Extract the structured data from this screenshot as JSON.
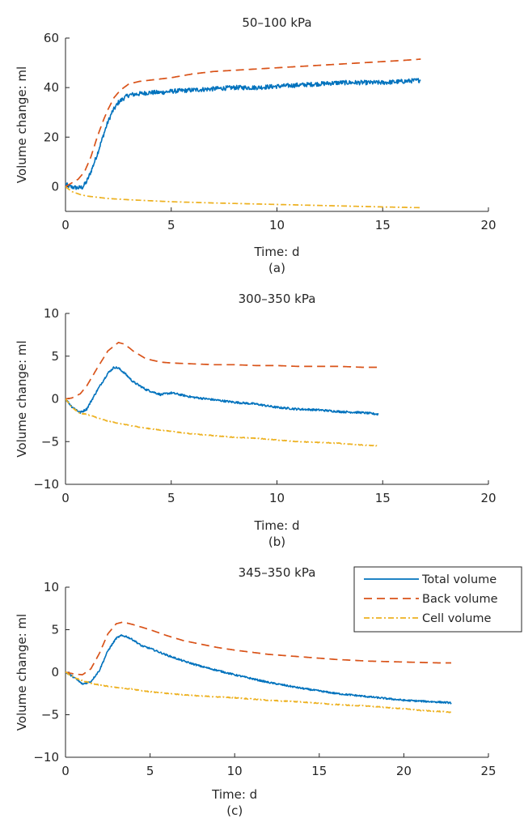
{
  "chart_data": [
    {
      "type": "line",
      "title": "50–100 kPa",
      "xlabel": "Time: d",
      "ylabel": "Volume change: ml",
      "caption": "(a)",
      "xlim": [
        0,
        20
      ],
      "ylim": [
        -10,
        60
      ],
      "xticks": [
        0,
        5,
        10,
        15,
        20
      ],
      "yticks": [
        0,
        20,
        40,
        60
      ],
      "grid": false,
      "series": [
        {
          "id": "total",
          "color": "#0072BD",
          "dash": "solid",
          "noise": 0.9,
          "x": [
            0,
            0.2,
            0.4,
            0.6,
            0.8,
            1.0,
            1.2,
            1.5,
            1.8,
            2.0,
            2.2,
            2.5,
            2.8,
            3.0,
            3.5,
            4.0,
            4.5,
            5.0,
            6.0,
            7.0,
            8.0,
            9.0,
            10.0,
            11.0,
            12.0,
            13.0,
            14.0,
            15.0,
            16.0,
            16.8
          ],
          "y": [
            1,
            0,
            -0.3,
            -0.5,
            -0.3,
            2,
            6,
            13,
            21,
            26,
            30,
            34,
            36,
            37,
            37.5,
            38,
            38,
            38.5,
            39,
            39.5,
            40,
            40,
            40.5,
            41,
            41.5,
            42,
            42,
            42,
            42.5,
            43
          ]
        },
        {
          "id": "back",
          "color": "#D95319",
          "dash": "10,6",
          "noise": 0,
          "x": [
            0,
            0.3,
            0.6,
            0.9,
            1.2,
            1.5,
            1.8,
            2.0,
            2.3,
            2.6,
            3.0,
            3.5,
            4.0,
            5.0,
            6.0,
            7.0,
            8.0,
            9.0,
            10.0,
            11.0,
            12.0,
            13.0,
            14.0,
            15.0,
            16.0,
            16.8
          ],
          "y": [
            0,
            1.5,
            3,
            6,
            12,
            20,
            27,
            31,
            36,
            39,
            41.5,
            42.5,
            43,
            44,
            45.5,
            46.5,
            47,
            47.5,
            48,
            48.5,
            49,
            49.5,
            50,
            50.5,
            51,
            51.5
          ]
        },
        {
          "id": "cell",
          "color": "#EDB120",
          "dash": "7,3,2,3",
          "noise": 0,
          "x": [
            0,
            0.3,
            0.7,
            1.0,
            2.0,
            3.0,
            5.0,
            7.0,
            10.0,
            13.0,
            15.0,
            16.8
          ],
          "y": [
            0,
            -2,
            -3.2,
            -3.8,
            -4.8,
            -5.3,
            -6.1,
            -6.6,
            -7.2,
            -7.8,
            -8.2,
            -8.5
          ]
        }
      ]
    },
    {
      "type": "line",
      "title": "300–350 kPa",
      "xlabel": "Time: d",
      "ylabel": "Volume change: ml",
      "caption": "(b)",
      "xlim": [
        0,
        20
      ],
      "ylim": [
        -10,
        10
      ],
      "xticks": [
        0,
        5,
        10,
        15,
        20
      ],
      "yticks": [
        -10,
        -5,
        0,
        5,
        10
      ],
      "grid": false,
      "series": [
        {
          "id": "total",
          "color": "#0072BD",
          "dash": "solid",
          "noise": 0.12,
          "x": [
            0,
            0.3,
            0.7,
            1.0,
            1.5,
            2.0,
            2.3,
            2.5,
            2.8,
            3.2,
            3.8,
            4.5,
            5.0,
            6.0,
            7.0,
            8.0,
            9.0,
            10.0,
            11.0,
            12.0,
            13.0,
            14.0,
            14.8
          ],
          "y": [
            0,
            -0.9,
            -1.6,
            -1.2,
            1.0,
            3.0,
            3.7,
            3.6,
            3.0,
            2.0,
            1.1,
            0.5,
            0.7,
            0.2,
            -0.1,
            -0.4,
            -0.6,
            -1.0,
            -1.2,
            -1.3,
            -1.5,
            -1.6,
            -1.8
          ]
        },
        {
          "id": "back",
          "color": "#D95319",
          "dash": "10,6",
          "noise": 0,
          "x": [
            0,
            0.3,
            0.7,
            1.0,
            1.5,
            2.0,
            2.5,
            2.8,
            3.2,
            3.8,
            4.5,
            5.0,
            6.0,
            7.0,
            8.0,
            9.0,
            10.0,
            11.0,
            12.0,
            13.0,
            14.0,
            14.8
          ],
          "y": [
            0,
            0.1,
            0.6,
            1.5,
            3.6,
            5.6,
            6.6,
            6.4,
            5.6,
            4.7,
            4.3,
            4.2,
            4.1,
            4.0,
            4.0,
            3.9,
            3.9,
            3.8,
            3.8,
            3.8,
            3.7,
            3.7
          ]
        },
        {
          "id": "cell",
          "color": "#EDB120",
          "dash": "7,3,2,3",
          "noise": 0.04,
          "x": [
            0,
            0.3,
            0.7,
            1.0,
            1.5,
            2.0,
            3.0,
            4.0,
            5.0,
            6.0,
            7.0,
            8.0,
            9.0,
            10.0,
            11.0,
            12.0,
            13.0,
            14.0,
            14.8
          ],
          "y": [
            0,
            -1.0,
            -1.7,
            -1.8,
            -2.2,
            -2.6,
            -3.1,
            -3.5,
            -3.8,
            -4.1,
            -4.3,
            -4.5,
            -4.6,
            -4.8,
            -5.0,
            -5.1,
            -5.2,
            -5.4,
            -5.5
          ]
        }
      ]
    },
    {
      "type": "line",
      "title": "345–350 kPa",
      "xlabel": "Time: d",
      "ylabel": "Volume change: ml",
      "caption": "(c)",
      "xlim": [
        0,
        25
      ],
      "ylim": [
        -10,
        10
      ],
      "xticks": [
        0,
        5,
        10,
        15,
        20,
        25
      ],
      "yticks": [
        -10,
        -5,
        0,
        5,
        10
      ],
      "grid": false,
      "legend": {
        "position": "top-right",
        "entries": [
          "Total volume",
          "Back volume",
          "Cell volume"
        ]
      },
      "series": [
        {
          "id": "total",
          "name": "Total volume",
          "color": "#0072BD",
          "dash": "solid",
          "noise": 0.1,
          "x": [
            0,
            0.5,
            1.0,
            1.5,
            2.0,
            2.5,
            3.0,
            3.3,
            3.6,
            4.0,
            4.5,
            5.0,
            6.0,
            7.0,
            8.0,
            9.0,
            10.0,
            12.0,
            14.0,
            16.0,
            18.0,
            20.0,
            21.0,
            22.0,
            22.8
          ],
          "y": [
            0,
            -0.6,
            -1.4,
            -1.1,
            0.2,
            2.5,
            4.0,
            4.3,
            4.2,
            3.8,
            3.1,
            2.8,
            2.0,
            1.3,
            0.7,
            0.2,
            -0.3,
            -1.2,
            -1.9,
            -2.5,
            -2.9,
            -3.3,
            -3.4,
            -3.5,
            -3.6
          ]
        },
        {
          "id": "back",
          "name": "Back volume",
          "color": "#D95319",
          "dash": "10,6",
          "noise": 0,
          "x": [
            0,
            0.5,
            1.0,
            1.5,
            2.0,
            2.5,
            3.0,
            3.4,
            4.0,
            5.0,
            6.0,
            7.0,
            8.0,
            9.0,
            10.0,
            12.0,
            14.0,
            16.0,
            18.0,
            20.0,
            22.0,
            22.8
          ],
          "y": [
            0,
            -0.2,
            -0.3,
            0.4,
            2.2,
            4.5,
            5.7,
            5.9,
            5.6,
            5.0,
            4.3,
            3.7,
            3.3,
            2.9,
            2.6,
            2.1,
            1.8,
            1.5,
            1.3,
            1.2,
            1.1,
            1.1
          ]
        },
        {
          "id": "cell",
          "name": "Cell volume",
          "color": "#EDB120",
          "dash": "7,3,2,3",
          "noise": 0.05,
          "x": [
            0,
            0.5,
            1.0,
            1.5,
            2.0,
            3.0,
            4.0,
            5.0,
            6.0,
            8.0,
            10.0,
            12.0,
            14.0,
            16.0,
            18.0,
            20.0,
            21.0,
            22.0,
            22.8
          ],
          "y": [
            0,
            -0.6,
            -1.0,
            -1.3,
            -1.5,
            -1.8,
            -2.0,
            -2.3,
            -2.5,
            -2.8,
            -3.0,
            -3.3,
            -3.5,
            -3.8,
            -4.0,
            -4.3,
            -4.5,
            -4.6,
            -4.7
          ]
        }
      ]
    }
  ]
}
